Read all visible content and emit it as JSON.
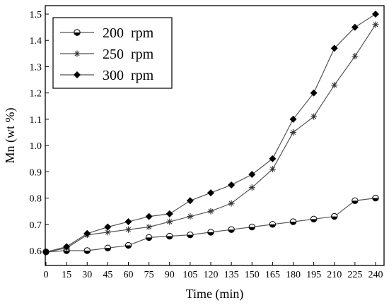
{
  "chart_data": {
    "type": "line",
    "xlabel": "Time (min)",
    "ylabel": "Mn (wt %)",
    "xlim": [
      0,
      240
    ],
    "ylim": [
      0.6,
      1.5
    ],
    "x_ticks": [
      0,
      15,
      30,
      45,
      60,
      75,
      90,
      105,
      120,
      135,
      150,
      165,
      180,
      195,
      210,
      225,
      240
    ],
    "y_ticks": [
      0.6,
      0.7,
      0.8,
      0.9,
      1.0,
      1.1,
      1.2,
      1.3,
      1.4,
      1.5
    ],
    "x": [
      0,
      15,
      30,
      45,
      60,
      75,
      90,
      105,
      120,
      135,
      150,
      165,
      180,
      195,
      210,
      225,
      240
    ],
    "grid": false,
    "legend_position": "top-left",
    "series": [
      {
        "name": "200  rpm",
        "marker": "half-filled-circle",
        "color": "#555555",
        "values": [
          0.595,
          0.6,
          0.6,
          0.61,
          0.62,
          0.65,
          0.655,
          0.66,
          0.67,
          0.68,
          0.69,
          0.7,
          0.71,
          0.72,
          0.73,
          0.79,
          0.8
        ]
      },
      {
        "name": "250  rpm",
        "marker": "asterisk",
        "color": "#555555",
        "values": [
          0.595,
          0.61,
          0.66,
          0.67,
          0.68,
          0.69,
          0.71,
          0.73,
          0.75,
          0.78,
          0.84,
          0.91,
          1.05,
          1.11,
          1.23,
          1.34,
          1.46
        ]
      },
      {
        "name": "300  rpm",
        "marker": "diamond",
        "color": "#555555",
        "values": [
          0.595,
          0.615,
          0.665,
          0.69,
          0.71,
          0.73,
          0.74,
          0.79,
          0.82,
          0.85,
          0.89,
          0.95,
          1.1,
          1.2,
          1.37,
          1.45,
          1.5
        ]
      }
    ]
  }
}
